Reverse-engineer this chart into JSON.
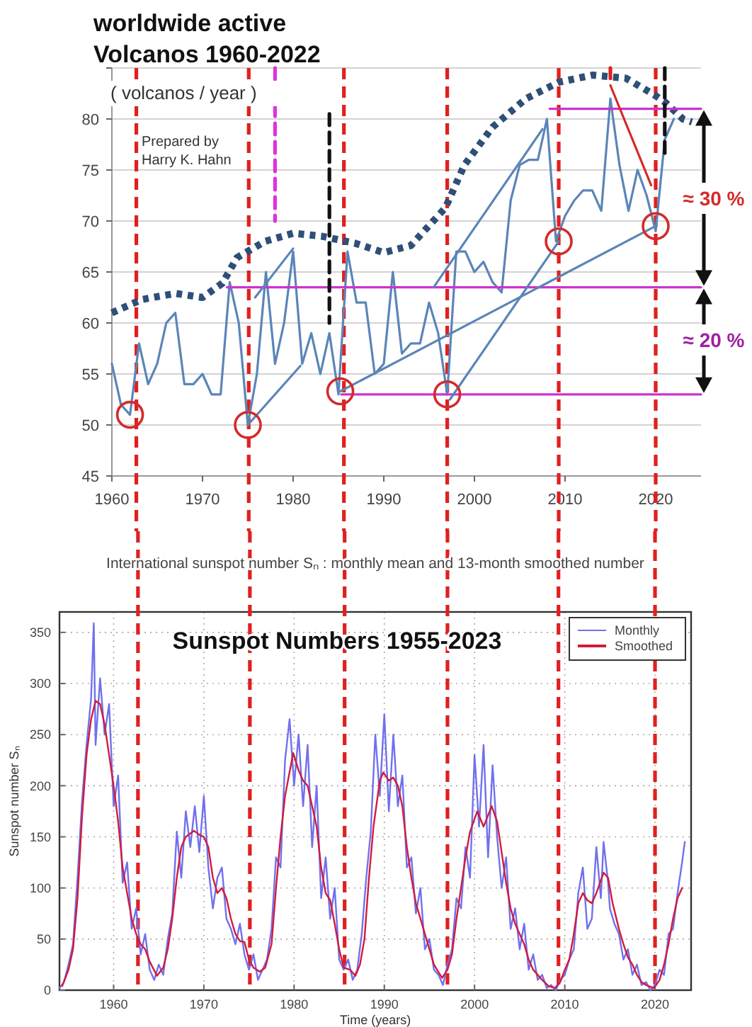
{
  "chart_data": [
    {
      "type": "line",
      "title": "worldwide active Volcanos 1960-2022",
      "subtitle": "( volcanos / year )",
      "annotations": [
        "Prepared by Harry K. Hahn",
        "≈ 30 %",
        "≈ 20 %"
      ],
      "xlim": [
        1960,
        2025
      ],
      "ylim": [
        45,
        85
      ],
      "xticks": [
        1960,
        1970,
        1980,
        1990,
        2000,
        2010,
        2020
      ],
      "yticks": [
        45,
        50,
        55,
        60,
        65,
        70,
        75,
        80,
        {
          "value": 85,
          "label": null
        }
      ],
      "grid": "y",
      "series": [
        {
          "type": "line",
          "color": "#2f4f78",
          "line_style": "dotted",
          "x": [
            1960,
            1963.3,
            1967,
            1970,
            1972.2,
            1973.8,
            1976.9,
            1980,
            1983.2,
            1986.9,
            1990,
            1993,
            1996.8,
            1998.9,
            2002,
            2005.7,
            2009.3,
            2013,
            2016.7,
            2019.8,
            2021.1,
            2023,
            2024
          ],
          "values": [
            61,
            62.3,
            62.9,
            62.5,
            63.9,
            66.4,
            68,
            68.8,
            68.5,
            67.8,
            66.9,
            67.6,
            71.3,
            75.5,
            79.2,
            82,
            83.6,
            84.3,
            84,
            82.4,
            81.6,
            80,
            79.7
          ]
        },
        {
          "type": "line",
          "color": "#5b85b8",
          "line_style": "solid",
          "x": [
            1960,
            1961,
            1962,
            1963,
            1964,
            1965,
            1966,
            1967,
            1968,
            1969,
            1970,
            1971,
            1972,
            1973,
            1974,
            1975,
            1976,
            1977,
            1978,
            1979,
            1980,
            1981,
            1982,
            1983,
            1984,
            1985,
            1986,
            1987,
            1988,
            1989,
            1990,
            1991,
            1992,
            1993,
            1994,
            1995,
            1996,
            1997,
            1998,
            1999,
            2000,
            2001,
            2002,
            2003,
            2004,
            2005,
            2006,
            2007,
            2008,
            2009,
            2010,
            2011,
            2012,
            2013,
            2014,
            2015,
            2016,
            2017,
            2018,
            2019,
            2020,
            2021,
            2022
          ],
          "values": [
            56,
            52,
            51,
            58,
            54,
            56,
            60,
            61,
            54,
            54,
            55,
            53,
            53,
            64,
            60,
            50,
            55,
            65,
            56,
            60,
            67,
            56,
            59,
            55,
            59,
            53,
            67,
            62,
            62,
            55,
            56,
            65,
            57,
            58,
            58,
            62,
            59,
            53,
            67,
            67,
            65,
            66,
            64,
            63,
            72,
            75.5,
            76,
            76,
            80,
            68,
            70.5,
            72,
            73,
            73,
            71,
            82,
            75.5,
            71,
            75,
            72.5,
            69,
            78,
            80
          ]
        },
        {
          "type": "line",
          "color": "#cc33cc",
          "line_style": "solid",
          "x": [
            2008.3,
            2025
          ],
          "values": [
            81,
            81
          ]
        },
        {
          "type": "line",
          "color": "#cc33cc",
          "line_style": "solid",
          "x": [
            1972.7,
            2025
          ],
          "values": [
            63.5,
            63.5
          ]
        },
        {
          "type": "line",
          "color": "#cc33cc",
          "line_style": "solid",
          "x": [
            1985.3,
            2025
          ],
          "values": [
            53,
            53
          ]
        },
        {
          "type": "line",
          "color": "#5b85b8",
          "line_style": "solid",
          "x": [
            1975,
            1980.8
          ],
          "values": [
            50,
            55.8
          ]
        },
        {
          "type": "line",
          "color": "#5b85b8",
          "line_style": "solid",
          "x": [
            1975.8,
            1980
          ],
          "values": [
            62.5,
            67.3
          ]
        },
        {
          "type": "line",
          "color": "#5b85b8",
          "line_style": "solid",
          "x": [
            1985.2,
            2020
          ],
          "values": [
            53.3,
            69.5
          ]
        },
        {
          "type": "line",
          "color": "#5b85b8",
          "line_style": "solid",
          "x": [
            1997.3,
            2009.3
          ],
          "values": [
            52.5,
            68
          ]
        },
        {
          "type": "line",
          "color": "#5b85b8",
          "line_style": "solid",
          "x": [
            1995.5,
            2007.5
          ],
          "values": [
            63.5,
            79
          ]
        },
        {
          "type": "line",
          "color": "#d42a2a",
          "line_style": "solid",
          "x": [
            2015,
            2019.5
          ],
          "values": [
            83.3,
            73.5
          ]
        },
        {
          "type": "line",
          "color": "#dd33dd",
          "line_style": "dashed",
          "x": [
            1978,
            1978
          ],
          "values": [
            85,
            70
          ]
        },
        {
          "type": "line",
          "color": "#111111",
          "line_style": "dashed",
          "x": [
            1984,
            1984
          ],
          "values": [
            80.5,
            60
          ]
        },
        {
          "type": "line",
          "color": "#111111",
          "line_style": "dashed",
          "x": [
            2021,
            2021
          ],
          "values": [
            85,
            76.5
          ]
        },
        {
          "type": "line",
          "color": "#e02020",
          "line_style": "dashed",
          "x": [
            2015,
            2015
          ],
          "values": [
            85,
            84
          ]
        },
        {
          "type": "scatter",
          "color": "#d42a2a",
          "marker": "circle",
          "x": [
            1962,
            1975,
            1985.2,
            1997,
            2009.3,
            2020
          ],
          "values": [
            51,
            50,
            53.3,
            53,
            68,
            69.5
          ]
        }
      ],
      "ref_lines": [
        {
          "axis": "x",
          "value": 1962.7,
          "color": "#e02020",
          "line_style": "dashed"
        },
        {
          "axis": "x",
          "value": 1975.1,
          "color": "#e02020",
          "line_style": "dashed"
        },
        {
          "axis": "x",
          "value": 1985.6,
          "color": "#e02020",
          "line_style": "dashed"
        },
        {
          "axis": "x",
          "value": 1997,
          "color": "#e02020",
          "line_style": "dashed"
        },
        {
          "axis": "x",
          "value": 2009.3,
          "color": "#e02020",
          "line_style": "dashed"
        },
        {
          "axis": "x",
          "value": 2020,
          "color": "#e02020",
          "line_style": "dashed"
        }
      ]
    },
    {
      "type": "line",
      "title": "International sunspot number Sₙ : monthly mean and 13-month smoothed number",
      "xlabel": "Time (years)",
      "ylabel": "Sunspot number Sₙ",
      "annotations": [
        "Sunspot Numbers 1955-2023"
      ],
      "xlim": [
        1954,
        2024
      ],
      "ylim": [
        0,
        370
      ],
      "xticks": [
        1960,
        1970,
        1980,
        1990,
        2000,
        2010,
        2020
      ],
      "yticks": [
        0,
        50,
        100,
        150,
        200,
        250,
        300,
        350
      ],
      "grid": true,
      "legend": "top right",
      "series": [
        {
          "name": "Monthly",
          "type": "line",
          "color": "#7070ee",
          "line_style": "solid",
          "x": [
            1954,
            1954.5,
            1955,
            1955.5,
            1956,
            1956.5,
            1957,
            1957.5,
            1957.8,
            1958,
            1958.5,
            1959,
            1959.5,
            1960,
            1960.5,
            1961,
            1961.5,
            1962,
            1962.5,
            1963,
            1963.5,
            1964,
            1964.5,
            1965,
            1965.5,
            1966,
            1966.5,
            1967,
            1967.5,
            1968,
            1968.5,
            1969,
            1969.5,
            1970,
            1970.5,
            1971,
            1971.5,
            1972,
            1972.5,
            1973,
            1973.5,
            1974,
            1974.5,
            1975,
            1975.5,
            1976,
            1976.5,
            1977,
            1977.5,
            1978,
            1978.5,
            1979,
            1979.5,
            1980,
            1980.5,
            1981,
            1981.5,
            1982,
            1982.5,
            1983,
            1983.5,
            1984,
            1984.5,
            1985,
            1985.5,
            1986,
            1986.5,
            1987,
            1987.5,
            1988,
            1988.5,
            1989,
            1989.5,
            1990,
            1990.5,
            1991,
            1991.5,
            1992,
            1992.5,
            1993,
            1993.5,
            1994,
            1994.5,
            1995,
            1995.5,
            1996,
            1996.5,
            1997,
            1997.5,
            1998,
            1998.5,
            1999,
            1999.5,
            2000,
            2000.5,
            2001,
            2001.5,
            2002,
            2002.5,
            2003,
            2003.5,
            2004,
            2004.5,
            2005,
            2005.5,
            2006,
            2006.5,
            2007,
            2007.5,
            2008,
            2008.5,
            2009,
            2009.5,
            2010,
            2010.5,
            2011,
            2011.5,
            2012,
            2012.5,
            2013,
            2013.5,
            2014,
            2014.3,
            2014.8,
            2015,
            2015.5,
            2016,
            2016.5,
            2017,
            2017.5,
            2018,
            2018.5,
            2019,
            2019.5,
            2020,
            2020.5,
            2021,
            2021.5,
            2022,
            2022.5,
            2023,
            2023.3
          ],
          "values": [
            2,
            8,
            25,
            45,
            110,
            185,
            240,
            285,
            359,
            240,
            305,
            250,
            280,
            180,
            210,
            105,
            125,
            60,
            80,
            35,
            55,
            20,
            10,
            25,
            15,
            50,
            75,
            155,
            110,
            175,
            140,
            180,
            135,
            190,
            120,
            80,
            110,
            120,
            70,
            60,
            45,
            65,
            35,
            20,
            35,
            10,
            20,
            30,
            60,
            130,
            120,
            225,
            265,
            200,
            250,
            180,
            240,
            140,
            200,
            90,
            130,
            70,
            100,
            30,
            20,
            30,
            10,
            20,
            55,
            110,
            155,
            250,
            190,
            270,
            175,
            250,
            180,
            210,
            120,
            130,
            75,
            100,
            40,
            50,
            20,
            15,
            5,
            25,
            40,
            90,
            80,
            140,
            110,
            230,
            160,
            240,
            130,
            220,
            150,
            100,
            130,
            60,
            80,
            40,
            65,
            20,
            35,
            10,
            15,
            2,
            5,
            0,
            10,
            15,
            30,
            40,
            95,
            120,
            60,
            70,
            140,
            90,
            145,
            105,
            80,
            65,
            55,
            30,
            40,
            15,
            25,
            5,
            8,
            0,
            5,
            20,
            15,
            55,
            60,
            95,
            125,
            145
          ]
        },
        {
          "name": "Smoothed",
          "type": "line",
          "color": "#d01c3c",
          "line_style": "solid",
          "x": [
            1954.3,
            1955,
            1955.5,
            1956,
            1956.5,
            1957,
            1957.5,
            1958,
            1958.5,
            1959,
            1959.5,
            1960,
            1960.5,
            1961,
            1961.5,
            1962,
            1962.5,
            1963,
            1963.5,
            1964,
            1964.8,
            1965.5,
            1966,
            1966.5,
            1967,
            1967.5,
            1968,
            1968.9,
            1969.5,
            1970,
            1970.5,
            1971,
            1971.5,
            1972,
            1972.5,
            1973,
            1973.5,
            1974,
            1974.5,
            1975,
            1975.5,
            1976.2,
            1976.8,
            1977.5,
            1978,
            1978.5,
            1979,
            1979.9,
            1980.5,
            1981,
            1981.5,
            1982,
            1982.5,
            1983,
            1983.5,
            1984,
            1984.5,
            1985,
            1985.5,
            1986.2,
            1986.8,
            1987.3,
            1987.8,
            1988.3,
            1988.8,
            1989.5,
            1989.9,
            1990.5,
            1991,
            1991.5,
            1992,
            1992.5,
            1993,
            1993.5,
            1994,
            1994.5,
            1995,
            1995.5,
            1996.4,
            1997,
            1997.5,
            1998,
            1998.5,
            1999,
            1999.5,
            2000.3,
            2001,
            2001.9,
            2002.5,
            2003,
            2003.5,
            2004,
            2004.5,
            2005,
            2005.5,
            2006,
            2006.5,
            2007,
            2007.5,
            2008.2,
            2008.9,
            2009.5,
            2010,
            2010.5,
            2011,
            2011.5,
            2012,
            2012.5,
            2013,
            2013.5,
            2014.3,
            2014.8,
            2015.3,
            2016,
            2016.5,
            2017,
            2017.5,
            2018,
            2018.5,
            2019,
            2019.9,
            2020.5,
            2021,
            2021.5,
            2022,
            2022.5,
            2023
          ],
          "values": [
            4,
            20,
            40,
            90,
            170,
            230,
            265,
            283,
            280,
            260,
            230,
            200,
            165,
            120,
            95,
            70,
            55,
            45,
            40,
            28,
            14,
            22,
            40,
            70,
            110,
            140,
            150,
            156,
            152,
            150,
            140,
            110,
            95,
            100,
            90,
            70,
            55,
            48,
            47,
            30,
            22,
            18,
            22,
            45,
            100,
            150,
            190,
            232,
            215,
            205,
            200,
            180,
            160,
            120,
            95,
            88,
            65,
            40,
            22,
            20,
            14,
            25,
            50,
            110,
            160,
            205,
            213,
            205,
            208,
            200,
            180,
            140,
            110,
            85,
            70,
            55,
            40,
            25,
            12,
            20,
            35,
            70,
            100,
            130,
            155,
            175,
            160,
            180,
            165,
            135,
            105,
            80,
            65,
            55,
            45,
            30,
            20,
            15,
            10,
            4,
            2,
            8,
            20,
            30,
            55,
            85,
            95,
            88,
            85,
            95,
            115,
            110,
            85,
            60,
            45,
            32,
            25,
            15,
            8,
            5,
            2,
            10,
            25,
            45,
            70,
            90,
            100
          ]
        }
      ],
      "ref_lines": [
        {
          "axis": "x",
          "value": 1962.7,
          "color": "#e02020",
          "line_style": "dashed"
        },
        {
          "axis": "x",
          "value": 1975.1,
          "color": "#e02020",
          "line_style": "dashed"
        },
        {
          "axis": "x",
          "value": 1985.6,
          "color": "#e02020",
          "line_style": "dashed"
        },
        {
          "axis": "x",
          "value": 1997,
          "color": "#e02020",
          "line_style": "dashed"
        },
        {
          "axis": "x",
          "value": 2009.3,
          "color": "#e02020",
          "line_style": "dashed"
        },
        {
          "axis": "x",
          "value": 2020,
          "color": "#e02020",
          "line_style": "dashed"
        }
      ]
    }
  ]
}
